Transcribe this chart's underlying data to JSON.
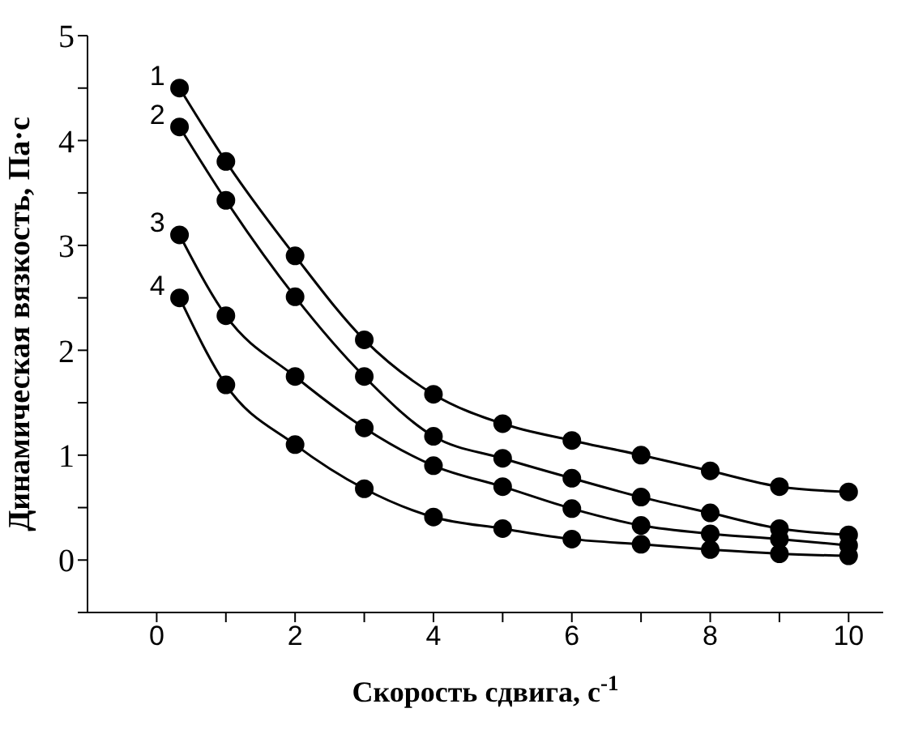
{
  "chart_data": {
    "type": "line",
    "xlabel": "Скорость сдвига, с$^{-1}$",
    "ylabel": "Динамическая вязкость, Па·с",
    "series": [
      {
        "name": "1",
        "color": "#000000",
        "x": [
          0.33,
          1,
          2,
          3,
          4,
          5,
          6,
          7,
          8,
          9,
          10
        ],
        "values": [
          4.5,
          3.8,
          2.9,
          2.1,
          1.58,
          1.3,
          1.14,
          1.0,
          0.85,
          0.7,
          0.65
        ]
      },
      {
        "name": "2",
        "color": "#000000",
        "x": [
          0.33,
          1,
          2,
          3,
          4,
          5,
          6,
          7,
          8,
          9,
          10
        ],
        "values": [
          4.13,
          3.43,
          2.51,
          1.75,
          1.18,
          0.97,
          0.78,
          0.6,
          0.45,
          0.3,
          0.24
        ]
      },
      {
        "name": "3",
        "color": "#000000",
        "x": [
          0.33,
          1,
          2,
          3,
          4,
          5,
          6,
          7,
          8,
          9,
          10
        ],
        "values": [
          3.1,
          2.33,
          1.75,
          1.26,
          0.9,
          0.7,
          0.49,
          0.33,
          0.25,
          0.2,
          0.14
        ]
      },
      {
        "name": "4",
        "color": "#000000",
        "x": [
          0.33,
          1,
          2,
          3,
          4,
          5,
          6,
          7,
          8,
          9,
          10
        ],
        "values": [
          2.5,
          1.67,
          1.1,
          0.68,
          0.41,
          0.3,
          0.2,
          0.15,
          0.1,
          0.06,
          0.04
        ]
      }
    ],
    "xlim": [
      -1,
      10.5
    ],
    "xticks": [
      0,
      {
        "value": 1,
        "label": null
      },
      2,
      {
        "value": 3,
        "label": null
      },
      4,
      {
        "value": 5,
        "label": null
      },
      6,
      {
        "value": 7,
        "label": null
      },
      8,
      {
        "value": 9,
        "label": null
      },
      10
    ],
    "ylim": [
      -0.5,
      5
    ],
    "yticks": [
      {
        "value": -0.5,
        "label": null
      },
      0,
      {
        "value": 0.5,
        "label": null
      },
      1,
      {
        "value": 1.5,
        "label": null
      },
      2,
      {
        "value": 2.5,
        "label": null
      },
      3,
      {
        "value": 3.5,
        "label": null
      },
      4,
      {
        "value": 4.5,
        "label": null
      },
      5
    ],
    "grid": false,
    "legend": false,
    "marker": "circle",
    "line_style": "solid"
  }
}
